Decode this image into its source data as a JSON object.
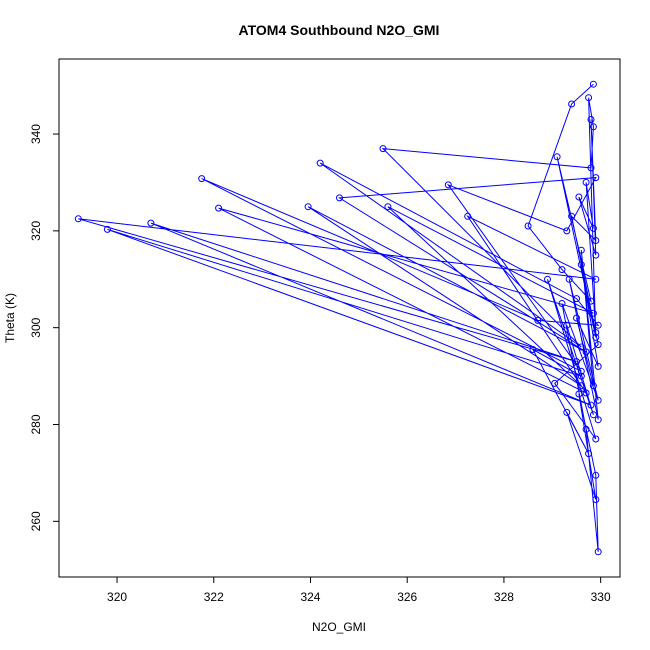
{
  "chart_data": {
    "type": "line",
    "title": "ATOM4 Southbound N2O_GMI",
    "xlabel": "N2O_GMI",
    "ylabel": "Theta (K)",
    "xlim": [
      318.8,
      330.4
    ],
    "ylim": [
      248.5,
      355.5
    ],
    "x_ticks": [
      320,
      322,
      324,
      326,
      328,
      330
    ],
    "y_ticks": [
      260,
      280,
      300,
      320,
      340
    ],
    "grid": false,
    "color": "#0000ff",
    "series": [
      {
        "points": [
          [
            329.85,
            350.3
          ],
          [
            329.4,
            346.2
          ],
          [
            328.5,
            321.0
          ],
          [
            329.2,
            312.0
          ],
          [
            329.8,
            305.5
          ],
          [
            329.1,
            335.3
          ],
          [
            329.9,
            298.0
          ],
          [
            329.75,
            347.5
          ],
          [
            329.85,
            341.5
          ],
          [
            329.8,
            333.0
          ],
          [
            325.5,
            337.0
          ],
          [
            329.6,
            296.0
          ],
          [
            324.2,
            334.0
          ],
          [
            329.5,
            306.0
          ],
          [
            329.95,
            300.5
          ],
          [
            328.7,
            301.5
          ],
          [
            321.75,
            330.8
          ],
          [
            329.6,
            291.0
          ],
          [
            326.85,
            329.5
          ],
          [
            329.3,
            320.0
          ],
          [
            329.9,
            331.0
          ],
          [
            324.6,
            326.8
          ],
          [
            329.7,
            295.0
          ],
          [
            323.95,
            325.0
          ],
          [
            329.6,
            288.0
          ],
          [
            325.6,
            325.0
          ],
          [
            329.85,
            303.0
          ],
          [
            322.1,
            324.7
          ],
          [
            329.7,
            286.5
          ],
          [
            327.25,
            323.0
          ],
          [
            329.9,
            310.0
          ],
          [
            319.2,
            322.5
          ],
          [
            329.5,
            293.0
          ],
          [
            320.7,
            321.6
          ],
          [
            329.8,
            284.0
          ],
          [
            319.8,
            320.3
          ],
          [
            329.6,
            290.0
          ],
          [
            328.6,
            295.5
          ],
          [
            329.75,
            274.0
          ],
          [
            329.3,
            282.5
          ],
          [
            329.9,
            264.5
          ],
          [
            329.55,
            286.3
          ],
          [
            329.9,
            269.5
          ],
          [
            329.95,
            253.7
          ],
          [
            329.7,
            279.0
          ],
          [
            329.2,
            305.0
          ],
          [
            329.95,
            285.0
          ],
          [
            329.35,
            310.0
          ],
          [
            329.95,
            281.0
          ],
          [
            329.6,
            316.0
          ],
          [
            329.85,
            288.0
          ],
          [
            329.5,
            302.0
          ],
          [
            329.95,
            292.0
          ],
          [
            329.6,
            313.0
          ],
          [
            329.9,
            299.0
          ],
          [
            329.7,
            330.0
          ],
          [
            329.85,
            320.5
          ],
          [
            329.55,
            327.0
          ],
          [
            329.9,
            315.0
          ],
          [
            329.8,
            343.0
          ],
          [
            329.9,
            318.0
          ],
          [
            329.4,
            323.0
          ],
          [
            329.95,
            296.5
          ],
          [
            329.05,
            288.5
          ],
          [
            329.9,
            277.0
          ],
          [
            328.9,
            310.0
          ],
          [
            329.85,
            282.0
          ],
          [
            329.3,
            300.5
          ]
        ]
      }
    ]
  }
}
